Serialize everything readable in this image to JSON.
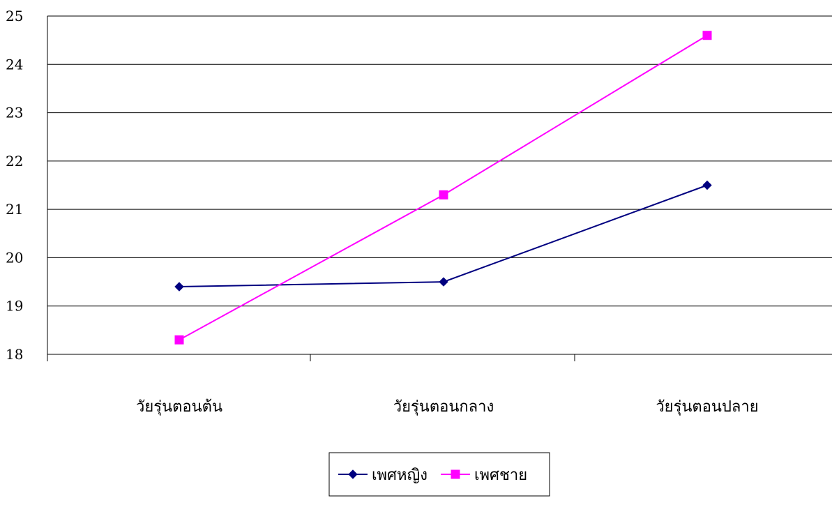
{
  "chart_data": {
    "type": "line",
    "categories": [
      "วัยรุ่นตอนต้น",
      "วัยรุ่นตอนกลาง",
      "วัยรุ่นตอนปลาย"
    ],
    "series": [
      {
        "name": "เพศหญิง",
        "values": [
          19.4,
          19.5,
          21.5
        ],
        "color": "#000080",
        "marker": "diamond"
      },
      {
        "name": "เพศชาย",
        "values": [
          18.3,
          21.3,
          24.6
        ],
        "color": "#FF00FF",
        "marker": "square"
      }
    ],
    "title": "",
    "xlabel": "",
    "ylabel": "",
    "ylim": [
      18,
      25
    ],
    "yticks": [
      "18",
      "19",
      "20",
      "21",
      "22",
      "23",
      "24",
      "25"
    ],
    "grid": true,
    "legend_position": "bottom"
  }
}
